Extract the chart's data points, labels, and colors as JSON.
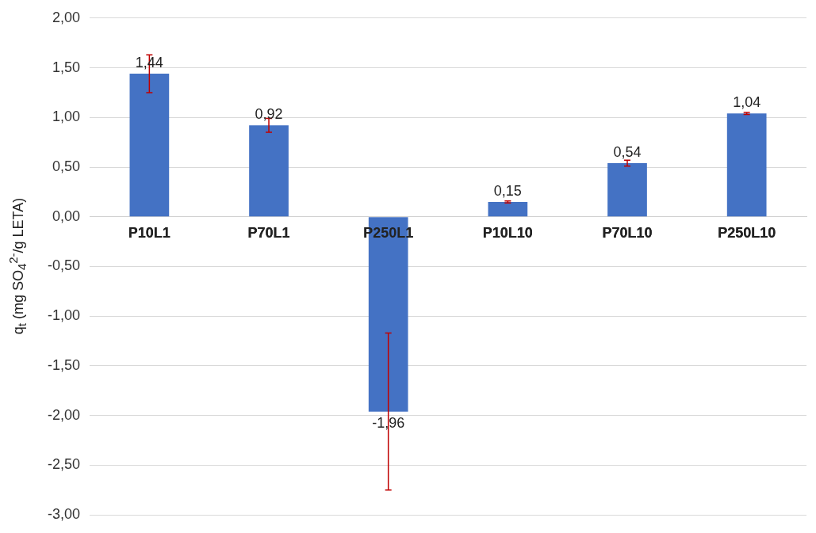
{
  "chart_data": {
    "type": "bar",
    "ylabel": "q$_{t}$ (mg SO$_{4}$$^{2-}$/g LETA)",
    "categories": [
      "P10L1",
      "P70L1",
      "P250L1",
      "P10L10",
      "P70L10",
      "P250L10"
    ],
    "values": [
      1.44,
      0.92,
      -1.96,
      0.15,
      0.54,
      1.04
    ],
    "value_labels": [
      "1,44",
      "0,92",
      "-1,96",
      "0,15",
      "0,54",
      "1,04"
    ],
    "errors": [
      0.19,
      0.07,
      0.79,
      0.01,
      0.03,
      0.01
    ],
    "color": "#4472c4",
    "ylim": [
      -3,
      2
    ],
    "yticks": [
      {
        "value": -3,
        "label": "-3,00"
      },
      {
        "value": -2.5,
        "label": "-2,50"
      },
      {
        "value": -2,
        "label": "-2,00"
      },
      {
        "value": -1.5,
        "label": "-1,50"
      },
      {
        "value": -1,
        "label": "-1,00"
      },
      {
        "value": -0.5,
        "label": "-0,50"
      },
      {
        "value": 0,
        "label": "0,00"
      },
      {
        "value": 0.5,
        "label": "0,50"
      },
      {
        "value": 1,
        "label": "1,00"
      },
      {
        "value": 1.5,
        "label": "1,50"
      },
      {
        "value": 2,
        "label": "2,00"
      }
    ],
    "grid": "y",
    "legend": false
  }
}
